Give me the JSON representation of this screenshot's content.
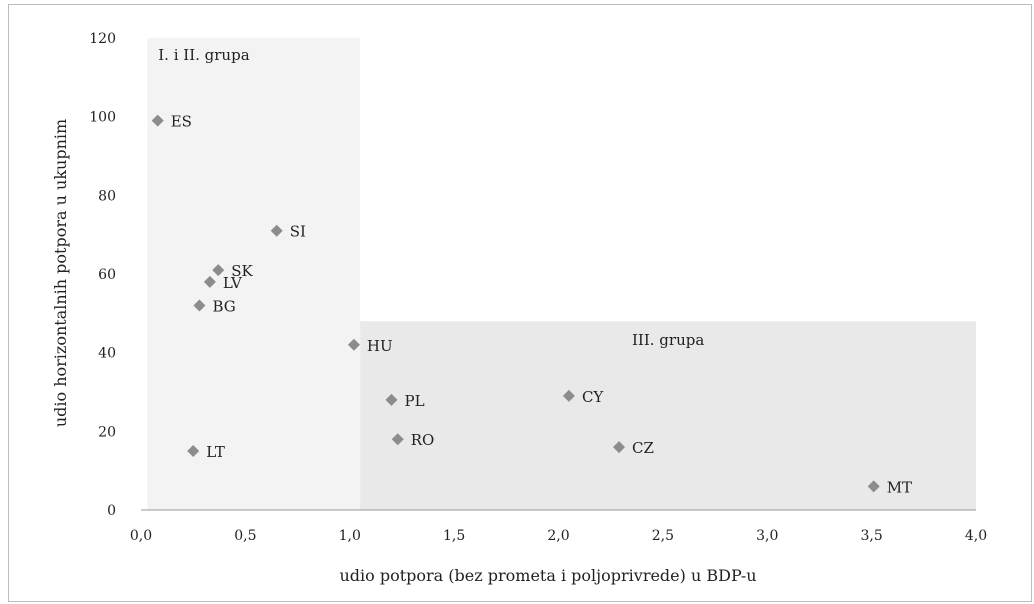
{
  "chart_data": {
    "type": "scatter",
    "title": "",
    "xlabel": "udio potpora (bez prometa i poljoprivrede) u BDP-u",
    "ylabel": "udio horizontalnih potpora u ukupnim",
    "xlim": [
      0,
      4
    ],
    "ylim": [
      0,
      120
    ],
    "xticks": [
      "0,0",
      "0,5",
      "1,0",
      "1,5",
      "2,0",
      "2,5",
      "3,0",
      "3,5",
      "4,0"
    ],
    "yticks": [
      "0",
      "20",
      "40",
      "60",
      "80",
      "100",
      "120"
    ],
    "grid": false,
    "marker_color": "#8c8c8c",
    "points": [
      {
        "label": "ES",
        "x": 0.08,
        "y": 99
      },
      {
        "label": "SI",
        "x": 0.65,
        "y": 71
      },
      {
        "label": "SK",
        "x": 0.37,
        "y": 61
      },
      {
        "label": "LV",
        "x": 0.33,
        "y": 58
      },
      {
        "label": "BG",
        "x": 0.28,
        "y": 52
      },
      {
        "label": "HU",
        "x": 1.02,
        "y": 42
      },
      {
        "label": "PL",
        "x": 1.2,
        "y": 28
      },
      {
        "label": "RO",
        "x": 1.23,
        "y": 18
      },
      {
        "label": "LT",
        "x": 0.25,
        "y": 15
      },
      {
        "label": "CY",
        "x": 2.05,
        "y": 29
      },
      {
        "label": "CZ",
        "x": 2.29,
        "y": 16
      },
      {
        "label": "MT",
        "x": 3.51,
        "y": 6
      }
    ],
    "regions": [
      {
        "label": "I. i II. grupa",
        "x_range": [
          0.03,
          1.05
        ],
        "y_range": [
          0,
          120
        ],
        "color": "#f3f3f3"
      },
      {
        "label": "III. grupa",
        "x_range": [
          1.05,
          4.0
        ],
        "y_range": [
          0,
          48
        ],
        "color": "#e9e9e9"
      }
    ]
  }
}
